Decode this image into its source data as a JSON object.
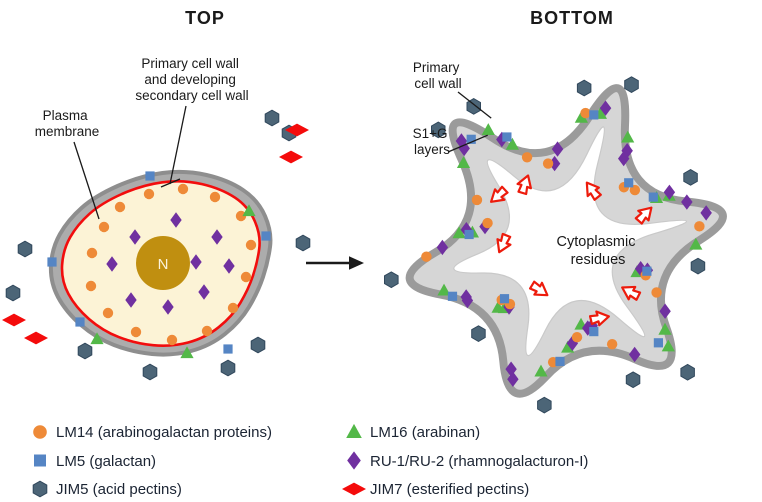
{
  "titles": {
    "top": "TOP",
    "bottom": "BOTTOM"
  },
  "labels": {
    "primary_secondary_wall": [
      "Primary cell wall",
      "and developing",
      "secondary cell wall"
    ],
    "plasma_membrane": [
      "Plasma",
      "membrane"
    ],
    "primary_cell_wall": [
      "Primary",
      "cell wall"
    ],
    "s1g_layers": [
      "S1+G",
      "layers"
    ],
    "cytoplasmic_residues": [
      "Cytoplasmic",
      "residues"
    ],
    "nucleus": "N"
  },
  "legend": {
    "items": [
      {
        "marker": "circle",
        "color": "#EE8A38",
        "label": "LM14 (arabinogalactan proteins)"
      },
      {
        "marker": "square",
        "color": "#5585C4",
        "label": "LM5 (galactan)"
      },
      {
        "marker": "hexagon",
        "color": "#4C6577",
        "label": "JIM5 (acid pectins)"
      },
      {
        "marker": "triangle",
        "color": "#53B848",
        "label": "LM16 (arabinan)"
      },
      {
        "marker": "diamond",
        "color": "#7030A0",
        "label": "RU-1/RU-2 (rhamnogalacturon-I)"
      },
      {
        "marker": "red-diamond",
        "color": "#F40B0B",
        "label": "JIM7 (esterified pectins)"
      }
    ]
  },
  "colors": {
    "wall_fill": "#ACACAC",
    "wall_edge": "#8E8E8E",
    "band_fill": "#D6D6D6",
    "band_edge": "#9B9B9B",
    "cell_interior": "#FCF3D6",
    "membrane_red": "#F20D0D",
    "nucleus_fill": "#C08F10",
    "residue_red": "#ED1B0C",
    "text": "#1A1A1A"
  }
}
